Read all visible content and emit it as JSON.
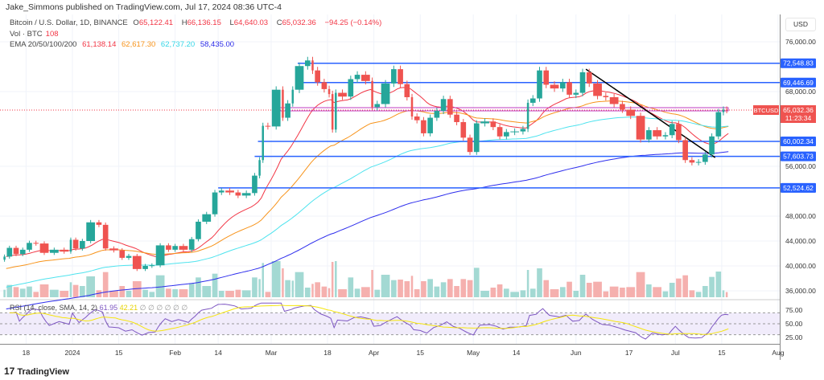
{
  "header": {
    "publisher": "Jake_Simmons published on TradingView.com, Jul 17, 2024 08:36 UTC-4"
  },
  "legend": {
    "symbol": "Bitcoin / U.S. Dollar, 1D, BINANCE",
    "o_label": "O",
    "o": "65,122.41",
    "h_label": "H",
    "h": "66,136.15",
    "l_label": "L",
    "l": "64,640.03",
    "c_label": "C",
    "c": "65,032.36",
    "change": "−94.25 (−0.14%)",
    "vol_label": "Vol · BTC",
    "vol": "108",
    "ema_label": "EMA 20/50/100/200",
    "ema20": "61,138.14",
    "ema50": "62,617.30",
    "ema100": "62,737.20",
    "ema200": "58,435.00"
  },
  "rsi_legend": {
    "label": "RSI (14, close, SMA, 14, 2)",
    "rsi": "61.95",
    "sma": "42.21",
    "empty": "∅ ∅ ∅ ∅ ∅ ∅"
  },
  "axis": {
    "currency": "USD"
  },
  "price_tag": {
    "symbol": "BTCUSD",
    "price": "65,032.36",
    "countdown": "11:23:34"
  },
  "footer": {
    "logo": "17",
    "brand": "TradingView"
  },
  "colors": {
    "up": "#26a69a",
    "down": "#ef5350",
    "ema20": "#f23645",
    "ema50": "#f7931a",
    "ema100": "#4ee3ee",
    "ema200": "#2d2ded",
    "level": "#2962ff",
    "rsi": "#7e57c2",
    "rsi_sma": "#f5e50b"
  },
  "chart_data": {
    "type": "candlestick",
    "title": "Bitcoin / U.S. Dollar, 1D, BINANCE",
    "x_unit": "days from 2024-01-01",
    "ylim": [
      34000,
      80000
    ],
    "first_open": 41000,
    "closes": [
      [
        -20,
        41500
      ],
      [
        -18,
        42900
      ],
      [
        -16,
        41900
      ],
      [
        -14,
        42600
      ],
      [
        -12,
        43700
      ],
      [
        -10,
        43600
      ],
      [
        -7,
        42100
      ],
      [
        -4,
        42600
      ],
      [
        -1,
        42300
      ],
      [
        0,
        44200
      ],
      [
        2,
        42800
      ],
      [
        4,
        44000
      ],
      [
        7,
        47000
      ],
      [
        9,
        46600
      ],
      [
        11,
        42800
      ],
      [
        14,
        42500
      ],
      [
        16,
        41300
      ],
      [
        18,
        41600
      ],
      [
        21,
        39500
      ],
      [
        23,
        40000
      ],
      [
        25,
        40100
      ],
      [
        28,
        43300
      ],
      [
        30,
        42600
      ],
      [
        32,
        43200
      ],
      [
        35,
        42600
      ],
      [
        37,
        44300
      ],
      [
        39,
        47100
      ],
      [
        42,
        48300
      ],
      [
        44,
        51800
      ],
      [
        46,
        52100
      ],
      [
        49,
        51800
      ],
      [
        51,
        51300
      ],
      [
        54,
        51700
      ],
      [
        56,
        54500
      ],
      [
        57,
        57000
      ],
      [
        58,
        62500
      ],
      [
        60,
        62400
      ],
      [
        63,
        68300
      ],
      [
        64,
        63800
      ],
      [
        66,
        66100
      ],
      [
        67,
        68300
      ],
      [
        70,
        72100
      ],
      [
        72,
        73000
      ],
      [
        73,
        71400
      ],
      [
        75,
        69500
      ],
      [
        77,
        68400
      ],
      [
        78,
        67600
      ],
      [
        79,
        61900
      ],
      [
        80,
        67800
      ],
      [
        83,
        67200
      ],
      [
        85,
        70000
      ],
      [
        87,
        70700
      ],
      [
        90,
        69700
      ],
      [
        91,
        65500
      ],
      [
        93,
        66000
      ],
      [
        96,
        69300
      ],
      [
        98,
        71600
      ],
      [
        100,
        69200
      ],
      [
        102,
        67100
      ],
      [
        103,
        64000
      ],
      [
        105,
        63400
      ],
      [
        107,
        61300
      ],
      [
        109,
        63800
      ],
      [
        111,
        64900
      ],
      [
        113,
        66800
      ],
      [
        115,
        64300
      ],
      [
        117,
        63100
      ],
      [
        119,
        60600
      ],
      [
        121,
        58300
      ],
      [
        123,
        62900
      ],
      [
        126,
        63200
      ],
      [
        128,
        62300
      ],
      [
        130,
        60800
      ],
      [
        132,
        61500
      ],
      [
        135,
        61600
      ],
      [
        137,
        62000
      ],
      [
        138,
        66200
      ],
      [
        140,
        66900
      ],
      [
        142,
        71400
      ],
      [
        144,
        69100
      ],
      [
        147,
        68500
      ],
      [
        149,
        69500
      ],
      [
        151,
        67500
      ],
      [
        153,
        67800
      ],
      [
        155,
        71100
      ],
      [
        157,
        69300
      ],
      [
        160,
        67300
      ],
      [
        162,
        67100
      ],
      [
        165,
        66000
      ],
      [
        167,
        65100
      ],
      [
        170,
        64100
      ],
      [
        173,
        60300
      ],
      [
        175,
        61800
      ],
      [
        178,
        60800
      ],
      [
        180,
        61000
      ],
      [
        182,
        62800
      ],
      [
        184,
        60200
      ],
      [
        186,
        57000
      ],
      [
        188,
        56600
      ],
      [
        190,
        56700
      ],
      [
        192,
        57900
      ],
      [
        194,
        60800
      ],
      [
        196,
        64700
      ],
      [
        197,
        65100
      ],
      [
        198,
        65032
      ]
    ],
    "ema_seeds": {
      "ema20": 41500,
      "ema50": 39500,
      "ema100": 36500,
      "ema200": 33000
    },
    "levels": [
      {
        "price": 72548.83,
        "label": "72,548.83",
        "from_day": 68
      },
      {
        "price": 69446.69,
        "label": "69,446.69",
        "from_day": 68
      },
      {
        "price": 60002.34,
        "label": "60,002.34",
        "from_day": 56
      },
      {
        "price": 57603.73,
        "label": "57,603.73",
        "from_day": 55
      },
      {
        "price": 52524.62,
        "label": "52,524.62",
        "from_day": 44
      }
    ],
    "current_price": 65032.36,
    "trendline": [
      [
        155,
        71600
      ],
      [
        194,
        57400
      ]
    ],
    "price_ticks": [
      {
        "v": 76000,
        "label": "76,000.00"
      },
      {
        "v": 68000,
        "label": "68,000.00"
      },
      {
        "v": 56000,
        "label": "56,000.00"
      },
      {
        "v": 48000,
        "label": "48,000.00"
      },
      {
        "v": 44000,
        "label": "44,000.00"
      },
      {
        "v": 40000,
        "label": "40,000.00"
      },
      {
        "v": 36000,
        "label": "36,000.00"
      }
    ],
    "time_ticks": [
      {
        "d": -14,
        "label": "18"
      },
      {
        "d": 0,
        "label": "2024"
      },
      {
        "d": 14,
        "label": "15"
      },
      {
        "d": 31,
        "label": "Feb"
      },
      {
        "d": 44,
        "label": "14"
      },
      {
        "d": 60,
        "label": "Mar"
      },
      {
        "d": 77,
        "label": "18"
      },
      {
        "d": 91,
        "label": "Apr"
      },
      {
        "d": 105,
        "label": "15"
      },
      {
        "d": 121,
        "label": "May"
      },
      {
        "d": 134,
        "label": "14"
      },
      {
        "d": 152,
        "label": "Jun"
      },
      {
        "d": 168,
        "label": "17"
      },
      {
        "d": 182,
        "label": "Jul"
      },
      {
        "d": 196,
        "label": "15"
      },
      {
        "d": 213,
        "label": "Aug"
      }
    ],
    "rsi_ticks": [
      {
        "v": 75,
        "label": "75.00"
      },
      {
        "v": 50,
        "label": "50.00"
      },
      {
        "v": 25,
        "label": "25.00"
      }
    ]
  }
}
